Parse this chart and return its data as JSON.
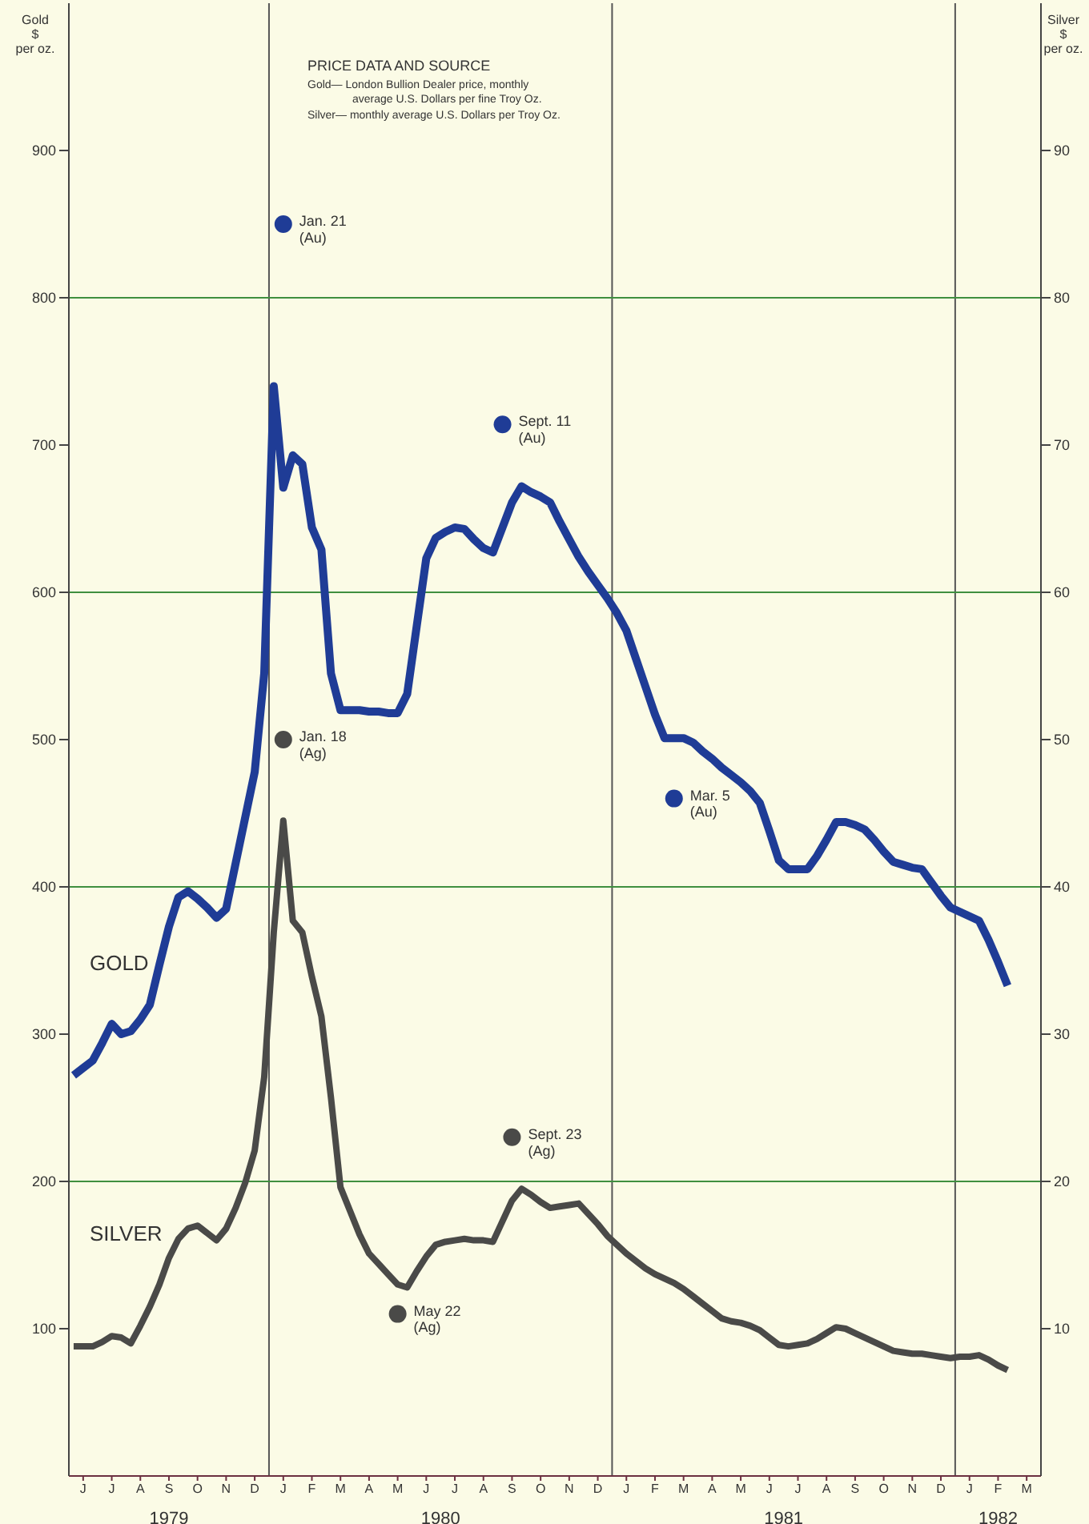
{
  "chart_data": {
    "type": "line",
    "ylabel": "Gold\n$\nper oz.",
    "y2label": "Silver\n$\nper oz.",
    "annotations": [
      "PRICE DATA AND SOURCE",
      "Gold— London Bullion Dealer price, monthly average U.S. Dollars per fine Troy Oz.",
      "Silver— monthly average U.S. Dollars per Troy Oz.",
      "1979",
      "1980",
      "1981",
      "1982"
    ],
    "categories": [
      null,
      "J",
      null,
      null,
      "J",
      null,
      null,
      "A",
      null,
      null,
      "S",
      null,
      null,
      "O",
      null,
      null,
      "N",
      null,
      null,
      "D",
      null,
      null,
      "J",
      null,
      null,
      "F",
      null,
      null,
      "M",
      null,
      null,
      "A",
      null,
      null,
      "M",
      null,
      null,
      "J",
      null,
      null,
      "J",
      null,
      null,
      "A",
      null,
      null,
      "S",
      null,
      null,
      "O",
      null,
      null,
      "N",
      null,
      null,
      "D",
      null,
      null,
      "J",
      null,
      null,
      "F",
      null,
      null,
      "M",
      null,
      null,
      "A",
      null,
      null,
      "M",
      null,
      null,
      "J",
      null,
      null,
      "J",
      null,
      null,
      "A",
      null,
      null,
      "S",
      null,
      null,
      "O",
      null,
      null,
      "N",
      null,
      null,
      "D",
      null,
      null,
      "J",
      null,
      null,
      "F",
      null,
      null,
      "M",
      null
    ],
    "ylim": [
      0,
      1000
    ],
    "yticks": [
      100,
      200,
      300,
      400,
      500,
      600,
      700,
      800,
      900
    ],
    "y2lim": [
      0,
      100
    ],
    "y2ticks": [
      10,
      20,
      30,
      40,
      50,
      60,
      70,
      80,
      90
    ],
    "ref_lines": [
      {
        "axis": "y",
        "value": 200,
        "color": "#3f8f3f"
      },
      {
        "axis": "y",
        "value": 400,
        "color": "#3f8f3f"
      },
      {
        "axis": "y",
        "value": 600,
        "color": "#3f8f3f"
      },
      {
        "axis": "y",
        "value": 800,
        "color": "#3f8f3f"
      }
    ],
    "series": [
      {
        "name": "GOLD",
        "color": "#1f3c96",
        "values": [
          272,
          277,
          282,
          294,
          307,
          300,
          302,
          310,
          320,
          347,
          373,
          393,
          397,
          392,
          386,
          379,
          385,
          416,
          447,
          478,
          545,
          740,
          671,
          693,
          687,
          644,
          629,
          545,
          520,
          520,
          520,
          519,
          519,
          518,
          518,
          531,
          577,
          623,
          637,
          641,
          644,
          643,
          636,
          630,
          627,
          644,
          661,
          672,
          668,
          665,
          661,
          648,
          636,
          624,
          614,
          605,
          596,
          586,
          574,
          555,
          536,
          517,
          501,
          501,
          501,
          498,
          492,
          487,
          481,
          476,
          471,
          465,
          457,
          438,
          418,
          412,
          412,
          412,
          421,
          432,
          444,
          444,
          442,
          439,
          432,
          424,
          417,
          415,
          413,
          412,
          403,
          394,
          386,
          383,
          380,
          377,
          364,
          349,
          333,
          null,
          null,
          null
        ]
      },
      {
        "name": "SILVER",
        "axis": "y2",
        "color": "#4a4a48",
        "values": [
          8.8,
          8.8,
          8.8,
          9.1,
          9.5,
          9.4,
          9.0,
          10.2,
          11.5,
          13.0,
          14.8,
          16.1,
          16.8,
          17.0,
          16.5,
          16.0,
          16.8,
          18.2,
          19.9,
          22.1,
          27.1,
          36.9,
          44.5,
          37.7,
          36.9,
          33.9,
          31.2,
          25.7,
          19.6,
          18.0,
          16.4,
          15.1,
          14.4,
          13.7,
          13.0,
          12.8,
          13.9,
          14.9,
          15.7,
          15.9,
          16.0,
          16.1,
          16.0,
          16.0,
          15.9,
          17.3,
          18.7,
          19.5,
          19.1,
          18.6,
          18.2,
          18.3,
          18.4,
          18.5,
          17.8,
          17.1,
          16.3,
          15.7,
          15.1,
          14.6,
          14.1,
          13.7,
          13.4,
          13.1,
          12.7,
          12.2,
          11.7,
          11.2,
          10.7,
          10.5,
          10.4,
          10.2,
          9.9,
          9.4,
          8.9,
          8.8,
          8.9,
          9.0,
          9.3,
          9.7,
          10.1,
          10.0,
          9.7,
          9.4,
          9.1,
          8.8,
          8.5,
          8.4,
          8.3,
          8.3,
          8.2,
          8.1,
          8.0,
          8.1,
          8.1,
          8.2,
          7.9,
          7.5,
          7.2,
          null,
          null,
          null
        ]
      },
      {
        "type": "scatter",
        "color": "#1f3c96",
        "values": [
          null,
          null,
          null,
          null,
          null,
          null,
          null,
          null,
          null,
          null,
          null,
          null,
          null,
          null,
          null,
          null,
          null,
          null,
          null,
          null,
          null,
          null,
          850,
          null,
          null,
          null,
          null,
          null,
          null,
          null,
          null,
          null,
          null,
          null,
          null,
          null,
          null,
          null,
          null,
          null,
          null,
          null,
          null,
          null,
          null,
          714,
          null,
          null,
          null,
          null,
          null,
          null,
          null,
          null,
          null,
          null,
          null,
          null,
          null,
          null,
          null,
          null,
          null,
          460,
          null,
          null,
          null,
          null,
          null,
          null,
          null,
          null,
          null,
          null,
          null,
          null,
          null,
          null,
          null,
          null,
          null,
          null,
          null,
          null,
          null,
          null,
          null,
          null,
          null,
          null,
          null,
          null,
          null,
          null,
          null,
          null,
          null,
          null,
          null,
          null,
          null,
          null
        ],
        "value_labels": [
          null,
          null,
          null,
          null,
          null,
          null,
          null,
          null,
          null,
          null,
          null,
          null,
          null,
          null,
          null,
          null,
          null,
          null,
          null,
          null,
          null,
          null,
          "Jan. 21\n(Au)",
          null,
          null,
          null,
          null,
          null,
          null,
          null,
          null,
          null,
          null,
          null,
          null,
          null,
          null,
          null,
          null,
          null,
          null,
          null,
          null,
          null,
          null,
          "Sept. 11\n(Au)",
          null,
          null,
          null,
          null,
          null,
          null,
          null,
          null,
          null,
          null,
          null,
          null,
          null,
          null,
          null,
          null,
          null,
          "Mar. 5\n(Au)",
          null,
          null,
          null,
          null,
          null,
          null,
          null,
          null,
          null,
          null,
          null,
          null,
          null,
          null,
          null,
          null,
          null,
          null,
          null,
          null,
          null,
          null,
          null,
          null,
          null,
          null,
          null,
          null,
          null,
          null,
          null,
          null,
          null,
          null,
          null,
          null,
          null,
          null
        ]
      },
      {
        "type": "scatter",
        "axis": "y2",
        "color": "#4a4a48",
        "values": [
          null,
          null,
          null,
          null,
          null,
          null,
          null,
          null,
          null,
          null,
          null,
          null,
          null,
          null,
          null,
          null,
          null,
          null,
          null,
          null,
          null,
          null,
          50,
          null,
          null,
          null,
          null,
          null,
          null,
          null,
          null,
          null,
          null,
          null,
          11,
          null,
          null,
          null,
          null,
          null,
          null,
          null,
          null,
          null,
          null,
          null,
          23,
          null,
          null,
          null,
          null,
          null,
          null,
          null,
          null,
          null,
          null,
          null,
          null,
          null,
          null,
          null,
          null,
          null,
          null,
          null,
          null,
          null,
          null,
          null,
          null,
          null,
          null,
          null,
          null,
          null,
          null,
          null,
          null,
          null,
          null,
          null,
          null,
          null,
          null,
          null,
          null,
          null,
          null,
          null,
          null,
          null,
          null,
          null,
          null,
          null,
          null,
          null,
          null,
          null,
          null,
          null
        ],
        "value_labels": [
          null,
          null,
          null,
          null,
          null,
          null,
          null,
          null,
          null,
          null,
          null,
          null,
          null,
          null,
          null,
          null,
          null,
          null,
          null,
          null,
          null,
          null,
          "Jan. 18\n(Ag)",
          null,
          null,
          null,
          null,
          null,
          null,
          null,
          null,
          null,
          null,
          null,
          "May 22\n(Ag)",
          null,
          null,
          null,
          null,
          null,
          null,
          null,
          null,
          null,
          null,
          null,
          "Sept. 23\n(Ag)",
          null,
          null,
          null,
          null,
          null,
          null,
          null,
          null,
          null,
          null,
          null,
          null,
          null,
          null,
          null,
          null,
          null,
          null,
          null,
          null,
          null,
          null,
          null,
          null,
          null,
          null,
          null,
          null,
          null,
          null,
          null,
          null,
          null,
          null,
          null,
          null,
          null,
          null,
          null,
          null,
          null,
          null,
          null,
          null,
          null,
          null,
          null,
          null,
          null,
          null,
          null,
          null,
          null,
          null,
          null
        ]
      }
    ]
  }
}
